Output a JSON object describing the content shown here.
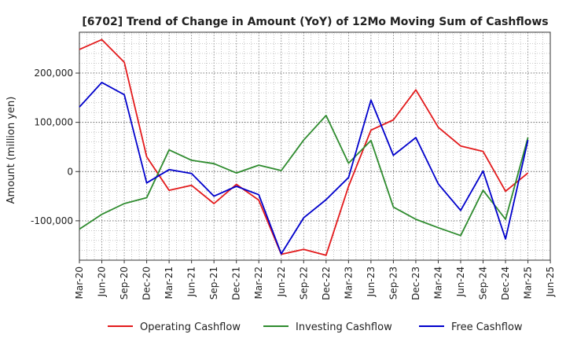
{
  "chart_data": {
    "type": "line",
    "title": "[6702]  Trend of Change in Amount (YoY) of 12Mo Moving Sum of Cashflows",
    "xlabel": "",
    "ylabel": "Amount (million yen)",
    "ylim": [
      -180000,
      283000
    ],
    "yticks": [
      -100000,
      0,
      100000,
      200000
    ],
    "ytick_labels": [
      "-100,000",
      "0",
      "100,000",
      "200,000"
    ],
    "categories": [
      "Mar-20",
      "Jun-20",
      "Sep-20",
      "Dec-20",
      "Mar-21",
      "Jun-21",
      "Sep-21",
      "Dec-21",
      "Mar-22",
      "Jun-22",
      "Sep-22",
      "Dec-22",
      "Mar-23",
      "Jun-23",
      "Sep-23",
      "Dec-23",
      "Mar-24",
      "Jun-24",
      "Sep-24",
      "Dec-24",
      "Mar-25",
      "Jun-25"
    ],
    "grid": true,
    "legend_position": "bottom",
    "series": [
      {
        "name": "Operating Cashflow",
        "color": "#e31a1c",
        "values": [
          248000,
          268000,
          222000,
          30000,
          -38000,
          -28000,
          -65000,
          -26000,
          -58000,
          -168000,
          -158000,
          -170000,
          -30000,
          84000,
          105000,
          166000,
          90000,
          52000,
          41000,
          -40000,
          -3000,
          null
        ]
      },
      {
        "name": "Investing Cashflow",
        "color": "#2e8b2e",
        "values": [
          -117000,
          -87000,
          -65000,
          -53000,
          44000,
          23000,
          16000,
          -3000,
          13000,
          2000,
          64000,
          114000,
          17000,
          63000,
          -72000,
          -97000,
          -114000,
          -130000,
          -38000,
          -97000,
          69000,
          null
        ]
      },
      {
        "name": "Free Cashflow",
        "color": "#0000cc",
        "values": [
          131000,
          181000,
          156000,
          -23000,
          4000,
          -4000,
          -50000,
          -30000,
          -47000,
          -167000,
          -94000,
          -57000,
          -12000,
          145000,
          33000,
          69000,
          -25000,
          -79000,
          1000,
          -137000,
          64000,
          null
        ]
      }
    ]
  }
}
